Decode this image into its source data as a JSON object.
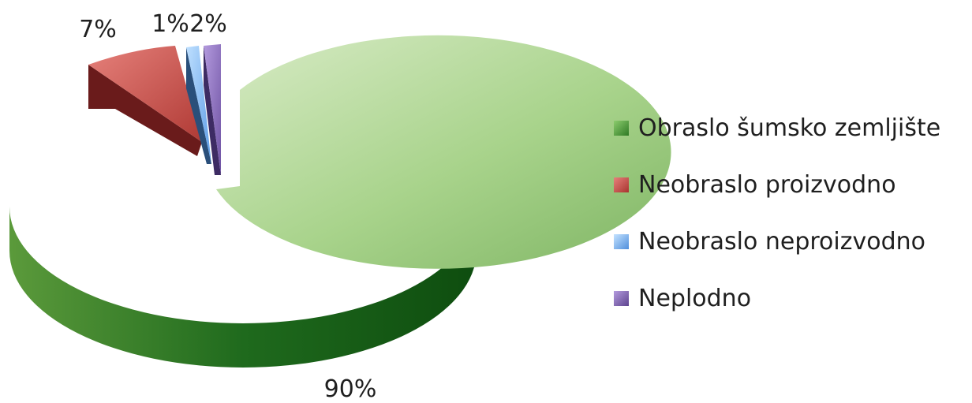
{
  "chart_data": {
    "type": "pie",
    "title": "",
    "style": "3d-exploded",
    "legend_position": "right",
    "categories": [
      "Obraslo šumsko zemljište",
      "Neobraslo proizvodno",
      "Neobraslo neproizvodno",
      "Neplodno"
    ],
    "values": [
      90,
      7,
      1,
      2
    ],
    "labels": [
      "90%",
      "7%",
      "1%",
      "2%"
    ],
    "colors": [
      "#4d8a34",
      "#b84540",
      "#5fa0e6",
      "#7a5ea8"
    ]
  }
}
